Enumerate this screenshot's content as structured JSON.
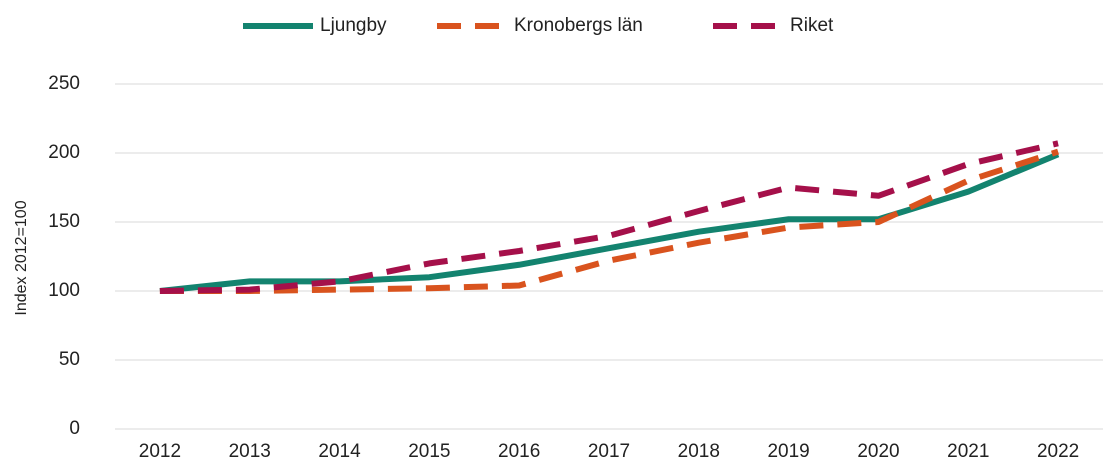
{
  "chart_data": {
    "type": "line",
    "ylabel": "Index 2012=100",
    "categories": [
      "2012",
      "2013",
      "2014",
      "2015",
      "2016",
      "2017",
      "2018",
      "2019",
      "2020",
      "2021",
      "2022"
    ],
    "series": [
      {
        "name": "Ljungby",
        "color": "#13836f",
        "dashed": false,
        "values": [
          100,
          107,
          107,
          110,
          119,
          131,
          143,
          152,
          152,
          172,
          199
        ]
      },
      {
        "name": "Kronobergs län",
        "color": "#d9531e",
        "dashed": true,
        "values": [
          100,
          100,
          101,
          102,
          104,
          122,
          135,
          146,
          150,
          180,
          201
        ]
      },
      {
        "name": "Riket",
        "color": "#a5104a",
        "dashed": true,
        "values": [
          100,
          101,
          107,
          120,
          129,
          140,
          158,
          175,
          169,
          192,
          207
        ]
      }
    ],
    "ylim": [
      0,
      250
    ],
    "yticks": [
      0,
      50,
      100,
      150,
      200,
      250
    ],
    "grid": true,
    "legend": "top"
  }
}
